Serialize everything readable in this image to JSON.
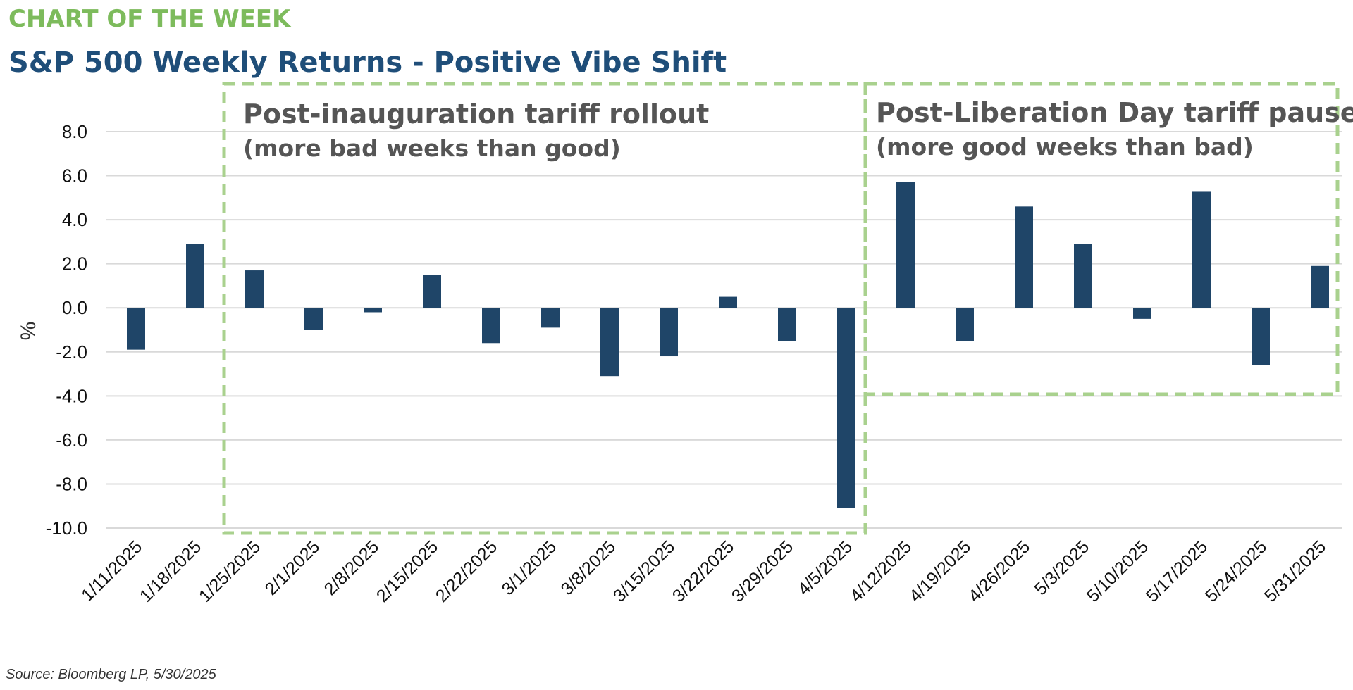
{
  "header": {
    "kicker": "CHART OF THE WEEK",
    "title": "S&P 500 Weekly Returns - Positive Vibe Shift"
  },
  "annotations": {
    "left": {
      "title": "Post-inauguration tariff rollout",
      "subtitle": "(more bad weeks than good)"
    },
    "right": {
      "title": "Post-Liberation Day tariff pause",
      "subtitle": "(more good weeks than bad)"
    }
  },
  "source": "Source: Bloomberg LP, 5/30/2025",
  "colors": {
    "bar": "#1f4568",
    "box": "#a9d18e",
    "grid": "#d9d9d9",
    "kicker": "#7dbb5c",
    "title": "#1f4e79"
  },
  "chart_data": {
    "type": "bar",
    "ylabel": "%",
    "ylim": [
      -10,
      8
    ],
    "yticks": [
      "8.0",
      "6.0",
      "4.0",
      "2.0",
      "0.0",
      "-2.0",
      "-4.0",
      "-6.0",
      "-8.0",
      "-10.0"
    ],
    "ytick_values": [
      8,
      6,
      4,
      2,
      0,
      -2,
      -4,
      -6,
      -8,
      -10
    ],
    "grid": true,
    "categories": [
      "1/11/2025",
      "1/18/2025",
      "1/25/2025",
      "2/1/2025",
      "2/8/2025",
      "2/15/2025",
      "2/22/2025",
      "3/1/2025",
      "3/8/2025",
      "3/15/2025",
      "3/22/2025",
      "3/29/2025",
      "4/5/2025",
      "4/12/2025",
      "4/19/2025",
      "4/26/2025",
      "5/3/2025",
      "5/10/2025",
      "5/17/2025",
      "5/24/2025",
      "5/31/2025"
    ],
    "values": [
      -1.9,
      2.9,
      1.7,
      -1.0,
      -0.2,
      1.5,
      -1.6,
      -0.9,
      -3.1,
      -2.2,
      0.5,
      -1.5,
      -9.1,
      5.7,
      -1.5,
      4.6,
      2.9,
      -0.5,
      5.3,
      -2.6,
      1.9
    ]
  }
}
